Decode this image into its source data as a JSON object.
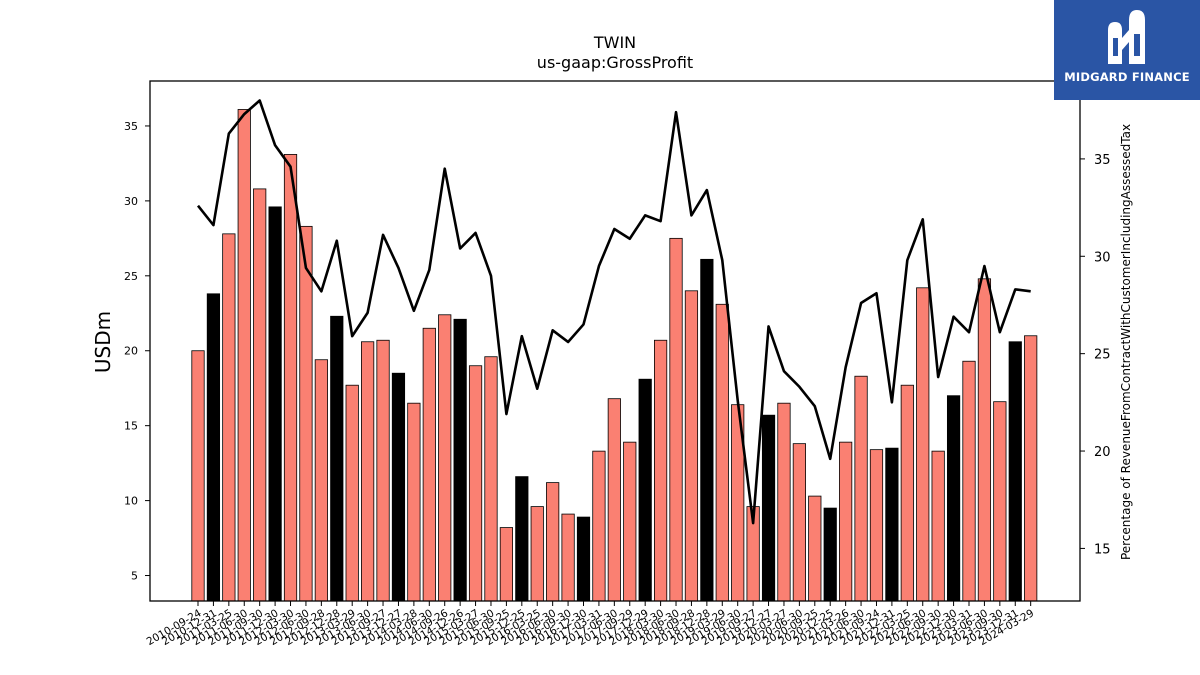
{
  "brand": {
    "name": "MIDGARD FINANCE",
    "logo_icon": "midgard-m-icon",
    "bg_color": "#2a55a5"
  },
  "chart_data": {
    "type": "bar",
    "title": "TWIN",
    "subtitle": "us-gaap:GrossProfit",
    "ylabel": "USDm",
    "y2label": "Percentage of RevenueFromContractWithCustomerIncludingAssessedTax",
    "ylim": [
      3.3,
      38
    ],
    "y2lim": [
      12.3,
      39
    ],
    "yticks": [
      5,
      10,
      15,
      20,
      25,
      30,
      35
    ],
    "y2ticks": [
      15,
      20,
      25,
      30,
      35
    ],
    "colors": {
      "annual": "#000000",
      "quarter": "#fa8072",
      "line": "#000000"
    },
    "categories": [
      "2010-09-24",
      "2010-12-31",
      "2011-03-25",
      "2011-06-30",
      "2011-09-30",
      "2011-12-30",
      "2012-03-30",
      "2012-06-30",
      "2012-09-28",
      "2012-12-28",
      "2013-03-29",
      "2013-06-30",
      "2013-09-27",
      "2013-12-27",
      "2014-03-28",
      "2014-06-30",
      "2014-09-26",
      "2014-12-26",
      "2015-03-27",
      "2015-06-30",
      "2015-09-25",
      "2015-12-25",
      "2016-03-25",
      "2016-06-30",
      "2016-09-30",
      "2016-12-30",
      "2017-03-31",
      "2017-06-30",
      "2017-09-29",
      "2017-12-29",
      "2018-03-30",
      "2018-06-30",
      "2018-09-28",
      "2018-12-28",
      "2019-03-29",
      "2019-06-30",
      "2019-09-27",
      "2019-12-27",
      "2020-03-27",
      "2020-06-30",
      "2020-09-25",
      "2020-12-25",
      "2021-03-26",
      "2021-06-30",
      "2021-09-24",
      "2021-12-31",
      "2022-03-25",
      "2022-06-30",
      "2022-09-30",
      "2022-12-30",
      "2023-03-31",
      "2023-06-30",
      "2023-09-30",
      "2023-12-31",
      "2024-03-29"
    ],
    "series": [
      {
        "kind": "bar",
        "values": [
          20.0,
          23.8,
          27.8,
          36.1,
          30.8,
          29.6,
          33.1,
          28.3,
          19.4,
          22.3,
          17.7,
          20.6,
          20.7,
          18.5,
          16.5,
          21.5,
          22.4,
          22.1,
          19.0,
          19.6,
          8.2,
          11.6,
          9.6,
          11.2,
          9.1,
          8.9,
          13.3,
          16.8,
          13.9,
          18.1,
          20.7,
          27.5,
          24.0,
          26.1,
          23.1,
          16.4,
          9.6,
          15.7,
          16.5,
          13.8,
          10.3,
          9.5,
          13.9,
          18.3,
          13.4,
          13.5,
          17.7,
          24.2,
          13.3,
          17.0,
          19.3,
          24.8,
          16.6,
          20.6,
          21.0
        ],
        "annual": [
          false,
          true,
          false,
          false,
          false,
          true,
          false,
          false,
          false,
          true,
          false,
          false,
          false,
          true,
          false,
          false,
          false,
          true,
          false,
          false,
          false,
          true,
          false,
          false,
          false,
          true,
          false,
          false,
          false,
          true,
          false,
          false,
          false,
          true,
          false,
          false,
          false,
          true,
          false,
          false,
          false,
          true,
          false,
          false,
          false,
          true,
          false,
          false,
          false,
          true,
          false,
          false,
          false,
          true,
          false
        ]
      },
      {
        "kind": "line",
        "axis": "right",
        "values": [
          32.6,
          31.6,
          36.3,
          37.3,
          38.0,
          35.7,
          34.6,
          29.4,
          28.2,
          30.8,
          25.9,
          27.1,
          31.1,
          29.4,
          27.2,
          29.3,
          34.5,
          30.4,
          31.2,
          29.0,
          21.9,
          25.9,
          23.2,
          26.2,
          25.6,
          26.5,
          29.5,
          31.4,
          30.9,
          32.1,
          31.8,
          37.4,
          32.1,
          33.4,
          29.8,
          22.6,
          16.3,
          26.4,
          24.1,
          23.3,
          22.3,
          19.6,
          24.3,
          27.6,
          28.1,
          22.5,
          29.8,
          31.9,
          23.8,
          26.9,
          26.1,
          29.5,
          26.1,
          28.3,
          28.2
        ]
      }
    ]
  }
}
